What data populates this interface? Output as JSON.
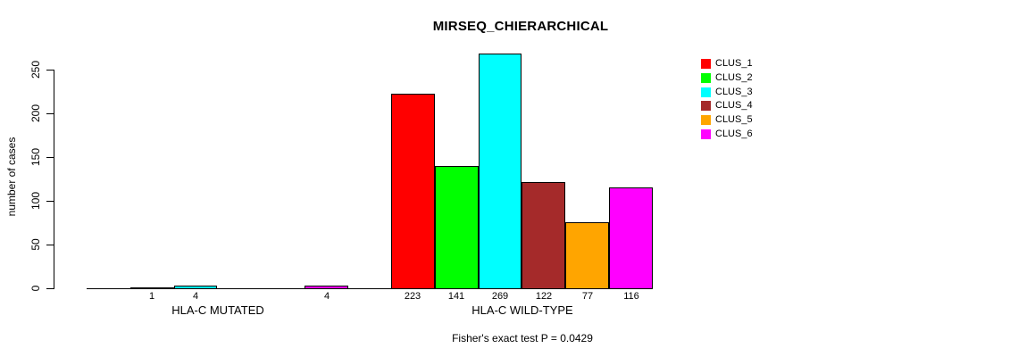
{
  "chart_data": {
    "type": "bar",
    "title": "MIRSEQ_CHIERARCHICAL",
    "ylabel": "number of cases",
    "footnote": "Fisher's exact test P = 0.0429",
    "ylim": [
      0,
      250
    ],
    "yticks": [
      0,
      50,
      100,
      150,
      200,
      250
    ],
    "grid": false,
    "legend_position": "right",
    "series": [
      {
        "name": "CLUS_1",
        "color": "#FF0000"
      },
      {
        "name": "CLUS_2",
        "color": "#00FF00"
      },
      {
        "name": "CLUS_3",
        "color": "#00FFFF"
      },
      {
        "name": "CLUS_4",
        "color": "#A52A2A"
      },
      {
        "name": "CLUS_5",
        "color": "#FFA500"
      },
      {
        "name": "CLUS_6",
        "color": "#FF00FF"
      }
    ],
    "groups": [
      {
        "label": "HLA-C MUTATED",
        "values": [
          0,
          1,
          4,
          0,
          0,
          4
        ],
        "value_labels": [
          "",
          "1",
          "4",
          "",
          "",
          "4"
        ]
      },
      {
        "label": "HLA-C WILD-TYPE",
        "values": [
          223,
          141,
          269,
          122,
          77,
          116
        ],
        "value_labels": [
          "223",
          "141",
          "269",
          "122",
          "77",
          "116"
        ]
      }
    ]
  }
}
